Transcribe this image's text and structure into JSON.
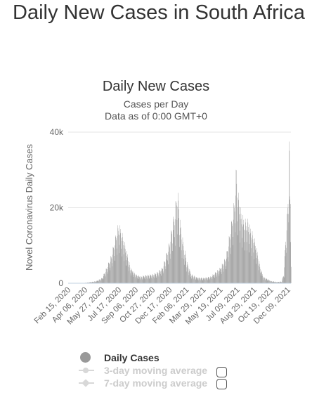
{
  "page": {
    "title": "Daily New Cases in South Africa"
  },
  "chart_data": {
    "type": "bar",
    "title": "Daily New Cases",
    "subtitle_lines": [
      "Cases per Day",
      "Data as of 0:00 GMT+0"
    ],
    "ylabel": "Novel Coronavirus Daily Cases",
    "xlabel": "",
    "ylim": [
      0,
      40000
    ],
    "yticks": [
      0,
      20000,
      40000
    ],
    "ytick_labels": [
      "0",
      "20k",
      "40k"
    ],
    "grid": true,
    "x_tick_labels": [
      "Feb 15, 2020",
      "Apr 06, 2020",
      "May 27, 2020",
      "Jul 17, 2020",
      "Sep 06, 2020",
      "Oct 27, 2020",
      "Dec 17, 2020",
      "Feb 06, 2021",
      "Mar 29, 2021",
      "May 19, 2021",
      "Jul 09, 2021",
      "Aug 29, 2021",
      "Oct 19, 2021",
      "Dec 09, 2021"
    ],
    "date_start": "2020-02-15",
    "date_end": "2021-12-18",
    "series": [
      {
        "name": "Daily Cases",
        "color": "#999999",
        "points": [
          [
            "2020-02-15",
            0
          ],
          [
            "2020-03-15",
            20
          ],
          [
            "2020-04-06",
            100
          ],
          [
            "2020-04-25",
            300
          ],
          [
            "2020-05-10",
            500
          ],
          [
            "2020-05-27",
            1200
          ],
          [
            "2020-06-10",
            3500
          ],
          [
            "2020-06-25",
            6500
          ],
          [
            "2020-07-05",
            10000
          ],
          [
            "2020-07-12",
            12500
          ],
          [
            "2020-07-17",
            13000
          ],
          [
            "2020-07-22",
            12300
          ],
          [
            "2020-08-01",
            9500
          ],
          [
            "2020-08-10",
            7000
          ],
          [
            "2020-08-20",
            3500
          ],
          [
            "2020-09-06",
            2000
          ],
          [
            "2020-09-20",
            1500
          ],
          [
            "2020-10-05",
            1800
          ],
          [
            "2020-10-27",
            2000
          ],
          [
            "2020-11-10",
            2500
          ],
          [
            "2020-11-25",
            3500
          ],
          [
            "2020-12-05",
            6000
          ],
          [
            "2020-12-17",
            9500
          ],
          [
            "2020-12-25",
            13500
          ],
          [
            "2021-01-02",
            16000
          ],
          [
            "2021-01-08",
            21500
          ],
          [
            "2021-01-12",
            19000
          ],
          [
            "2021-01-20",
            12000
          ],
          [
            "2021-02-06",
            5000
          ],
          [
            "2021-02-20",
            2000
          ],
          [
            "2021-03-10",
            1300
          ],
          [
            "2021-03-29",
            1200
          ],
          [
            "2021-04-20",
            1500
          ],
          [
            "2021-05-19",
            3500
          ],
          [
            "2021-06-05",
            6000
          ],
          [
            "2021-06-20",
            13000
          ],
          [
            "2021-07-01",
            19000
          ],
          [
            "2021-07-06",
            26000
          ],
          [
            "2021-07-09",
            21000
          ],
          [
            "2021-07-20",
            16000
          ],
          [
            "2021-07-30",
            14000
          ],
          [
            "2021-08-10",
            14000
          ],
          [
            "2021-08-29",
            10000
          ],
          [
            "2021-09-05",
            8000
          ],
          [
            "2021-09-15",
            4000
          ],
          [
            "2021-09-25",
            1500
          ],
          [
            "2021-10-19",
            500
          ],
          [
            "2021-11-05",
            300
          ],
          [
            "2021-11-20",
            400
          ],
          [
            "2021-11-27",
            2500
          ],
          [
            "2021-12-02",
            11000
          ],
          [
            "2021-12-07",
            16000
          ],
          [
            "2021-12-11",
            26000
          ],
          [
            "2021-12-12",
            37500
          ],
          [
            "2021-12-14",
            20000
          ],
          [
            "2021-12-16",
            21000
          ],
          [
            "2021-12-18",
            7000
          ]
        ]
      },
      {
        "name": "3-day moving average",
        "color": "#d8d8d8",
        "visible": false
      },
      {
        "name": "7-day moving average",
        "color": "#d8d8d8",
        "visible": false
      }
    ],
    "legend_position": "bottom"
  }
}
